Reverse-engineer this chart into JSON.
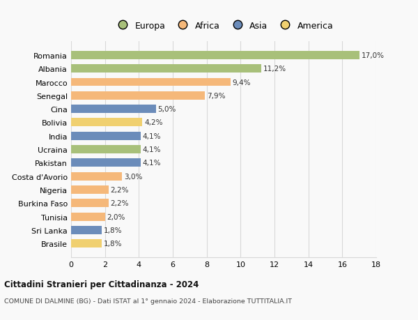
{
  "categories": [
    "Brasile",
    "Sri Lanka",
    "Tunisia",
    "Burkina Faso",
    "Nigeria",
    "Costa d'Avorio",
    "Pakistan",
    "Ucraina",
    "India",
    "Bolivia",
    "Cina",
    "Senegal",
    "Marocco",
    "Albania",
    "Romania"
  ],
  "values": [
    1.8,
    1.8,
    2.0,
    2.2,
    2.2,
    3.0,
    4.1,
    4.1,
    4.1,
    4.2,
    5.0,
    7.9,
    9.4,
    11.2,
    17.0
  ],
  "labels": [
    "1,8%",
    "1,8%",
    "2,0%",
    "2,2%",
    "2,2%",
    "3,0%",
    "4,1%",
    "4,1%",
    "4,1%",
    "4,2%",
    "5,0%",
    "7,9%",
    "9,4%",
    "11,2%",
    "17,0%"
  ],
  "colors": [
    "#f0d070",
    "#6b8cba",
    "#f5b87a",
    "#f5b87a",
    "#f5b87a",
    "#f5b87a",
    "#6b8cba",
    "#a8c07a",
    "#6b8cba",
    "#f0d070",
    "#6b8cba",
    "#f5b87a",
    "#f5b87a",
    "#a8c07a",
    "#a8c07a"
  ],
  "legend_labels": [
    "Europa",
    "Africa",
    "Asia",
    "America"
  ],
  "legend_colors": [
    "#a8c07a",
    "#f5b87a",
    "#6b8cba",
    "#f0d070"
  ],
  "title1": "Cittadini Stranieri per Cittadinanza - 2024",
  "title2": "COMUNE DI DALMINE (BG) - Dati ISTAT al 1° gennaio 2024 - Elaborazione TUTTITALIA.IT",
  "xlim": [
    0,
    18
  ],
  "xticks": [
    0,
    2,
    4,
    6,
    8,
    10,
    12,
    14,
    16,
    18
  ],
  "background_color": "#f9f9f9",
  "grid_color": "#d8d8d8",
  "bar_height": 0.62
}
